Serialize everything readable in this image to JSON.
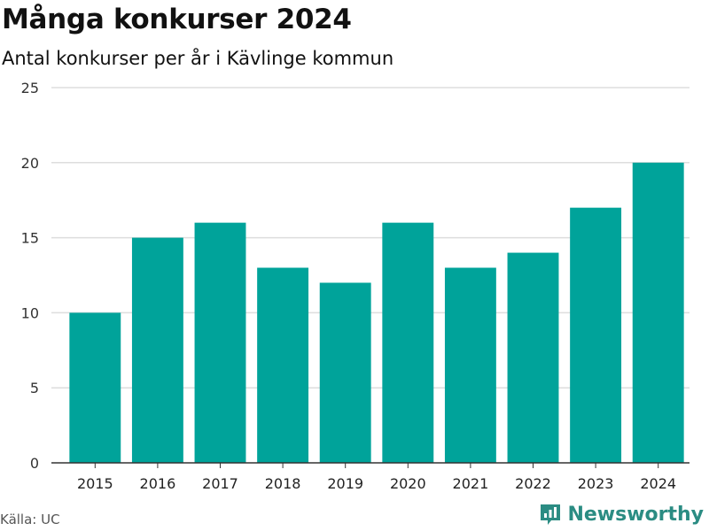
{
  "header": {
    "title": "Många konkurser 2024",
    "subtitle": "Antal konkurser per år i Kävlinge kommun"
  },
  "footer": {
    "source": "Källa: UC",
    "brand": "Newsworthy",
    "brand_icon": "bar-chart-logo-icon"
  },
  "colors": {
    "bar": "#00a39a",
    "grid": "#dddddd",
    "axis": "#333333",
    "brand": "#2b8c83"
  },
  "chart_data": {
    "type": "bar",
    "categories": [
      "2015",
      "2016",
      "2017",
      "2018",
      "2019",
      "2020",
      "2021",
      "2022",
      "2023",
      "2024"
    ],
    "values": [
      10,
      15,
      16,
      13,
      12,
      16,
      13,
      14,
      17,
      20
    ],
    "title": "Många konkurser 2024",
    "subtitle": "Antal konkurser per år i Kävlinge kommun",
    "xlabel": "",
    "ylabel": "",
    "ylim": [
      0,
      25
    ],
    "yticks": [
      0,
      5,
      10,
      15,
      20,
      25
    ],
    "grid": true,
    "legend": "none"
  }
}
